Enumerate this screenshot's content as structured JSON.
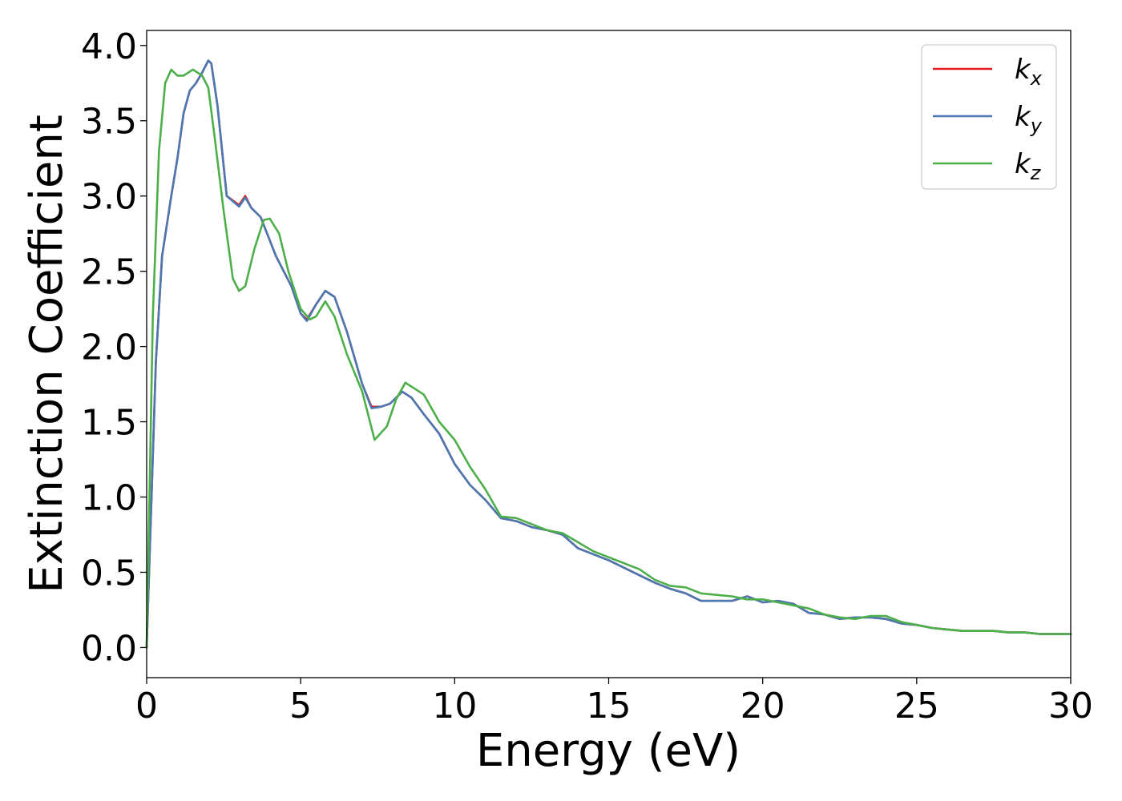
{
  "chart_data": {
    "type": "line",
    "xlabel": "Energy (eV)",
    "ylabel": "Extinction Coefficient",
    "xlim": [
      0,
      30
    ],
    "ylim": [
      -0.2,
      4.1
    ],
    "xticks": [
      0,
      5,
      10,
      15,
      20,
      25,
      30
    ],
    "xtick_labels": [
      "0",
      "5",
      "10",
      "15",
      "20",
      "25",
      "30"
    ],
    "yticks": [
      0.0,
      0.5,
      1.0,
      1.5,
      2.0,
      2.5,
      3.0,
      3.5,
      4.0
    ],
    "ytick_labels": [
      "0.0",
      "0.5",
      "1.0",
      "1.5",
      "2.0",
      "2.5",
      "3.0",
      "3.5",
      "4.0"
    ],
    "grid": false,
    "legend_position": "top-right",
    "series": [
      {
        "name": "k",
        "subscript": "x",
        "color": "#e41a1c",
        "x": [
          0,
          0.3,
          0.5,
          0.8,
          1.0,
          1.2,
          1.4,
          1.6,
          1.8,
          2.0,
          2.1,
          2.3,
          2.6,
          3.0,
          3.2,
          3.4,
          3.7,
          4.2,
          4.7,
          5.0,
          5.2,
          5.5,
          5.8,
          6.1,
          6.5,
          7.0,
          7.3,
          7.6,
          7.9,
          8.3,
          8.6,
          9.0,
          9.5,
          10.0,
          10.5,
          11.0,
          11.5,
          12.0,
          12.5,
          13.0,
          13.5,
          14.0,
          14.5,
          15.0,
          15.5,
          16.0,
          16.5,
          17.0,
          17.5,
          18.0,
          18.5,
          19.0,
          19.5,
          20.0,
          20.5,
          21.0,
          21.5,
          22.0,
          22.5,
          23.0,
          23.5,
          24.0,
          24.5,
          25.0,
          25.5,
          26.0,
          26.5,
          27.0,
          27.5,
          28.0,
          28.5,
          29.0,
          29.5,
          30.0
        ],
        "y": [
          0.0,
          1.9,
          2.6,
          3.0,
          3.25,
          3.55,
          3.7,
          3.75,
          3.82,
          3.9,
          3.88,
          3.6,
          3.0,
          2.94,
          3.0,
          2.92,
          2.86,
          2.6,
          2.4,
          2.22,
          2.18,
          2.28,
          2.37,
          2.33,
          2.1,
          1.75,
          1.6,
          1.6,
          1.62,
          1.7,
          1.66,
          1.55,
          1.42,
          1.22,
          1.08,
          0.98,
          0.86,
          0.84,
          0.8,
          0.78,
          0.75,
          0.66,
          0.62,
          0.58,
          0.53,
          0.48,
          0.43,
          0.39,
          0.36,
          0.31,
          0.31,
          0.31,
          0.34,
          0.3,
          0.31,
          0.29,
          0.23,
          0.22,
          0.19,
          0.2,
          0.2,
          0.19,
          0.16,
          0.15,
          0.13,
          0.12,
          0.11,
          0.11,
          0.11,
          0.1,
          0.1,
          0.09,
          0.09,
          0.09
        ]
      },
      {
        "name": "k",
        "subscript": "y",
        "color": "#4a78b2",
        "x": [
          0,
          0.3,
          0.5,
          0.8,
          1.0,
          1.2,
          1.4,
          1.6,
          1.8,
          2.0,
          2.1,
          2.3,
          2.6,
          3.0,
          3.2,
          3.4,
          3.7,
          4.2,
          4.7,
          5.0,
          5.2,
          5.5,
          5.8,
          6.1,
          6.5,
          7.0,
          7.3,
          7.6,
          7.9,
          8.3,
          8.6,
          9.0,
          9.5,
          10.0,
          10.5,
          11.0,
          11.5,
          12.0,
          12.5,
          13.0,
          13.5,
          14.0,
          14.5,
          15.0,
          15.5,
          16.0,
          16.5,
          17.0,
          17.5,
          18.0,
          18.5,
          19.0,
          19.5,
          20.0,
          20.5,
          21.0,
          21.5,
          22.0,
          22.5,
          23.0,
          23.5,
          24.0,
          24.5,
          25.0,
          25.5,
          26.0,
          26.5,
          27.0,
          27.5,
          28.0,
          28.5,
          29.0,
          29.5,
          30.0
        ],
        "y": [
          0.0,
          1.9,
          2.6,
          3.0,
          3.25,
          3.55,
          3.7,
          3.75,
          3.82,
          3.9,
          3.88,
          3.6,
          3.0,
          2.93,
          2.99,
          2.92,
          2.86,
          2.6,
          2.4,
          2.22,
          2.17,
          2.28,
          2.37,
          2.33,
          2.1,
          1.75,
          1.59,
          1.6,
          1.62,
          1.7,
          1.66,
          1.55,
          1.42,
          1.22,
          1.08,
          0.98,
          0.86,
          0.84,
          0.8,
          0.78,
          0.75,
          0.66,
          0.62,
          0.58,
          0.53,
          0.48,
          0.43,
          0.39,
          0.36,
          0.31,
          0.31,
          0.31,
          0.34,
          0.3,
          0.31,
          0.29,
          0.23,
          0.22,
          0.19,
          0.2,
          0.2,
          0.19,
          0.16,
          0.15,
          0.13,
          0.12,
          0.11,
          0.11,
          0.11,
          0.1,
          0.1,
          0.09,
          0.09,
          0.09
        ]
      },
      {
        "name": "k",
        "subscript": "z",
        "color": "#4daf4a",
        "x": [
          0,
          0.2,
          0.4,
          0.6,
          0.8,
          1.0,
          1.2,
          1.5,
          1.8,
          2.0,
          2.2,
          2.5,
          2.8,
          3.0,
          3.2,
          3.5,
          3.8,
          4.0,
          4.3,
          4.6,
          5.0,
          5.3,
          5.5,
          5.8,
          6.1,
          6.5,
          7.0,
          7.4,
          7.8,
          8.1,
          8.4,
          8.7,
          9.0,
          9.5,
          10.0,
          10.5,
          11.0,
          11.5,
          12.0,
          12.5,
          13.0,
          13.5,
          14.0,
          14.5,
          15.0,
          15.5,
          16.0,
          16.5,
          17.0,
          17.5,
          18.0,
          18.5,
          19.0,
          19.5,
          20.0,
          20.5,
          21.0,
          21.5,
          22.0,
          22.5,
          23.0,
          23.5,
          24.0,
          24.5,
          25.0,
          25.5,
          26.0,
          26.5,
          27.0,
          27.5,
          28.0,
          28.5,
          29.0,
          29.5,
          30.0
        ],
        "y": [
          0.0,
          2.2,
          3.3,
          3.75,
          3.84,
          3.8,
          3.8,
          3.84,
          3.8,
          3.72,
          3.4,
          2.9,
          2.45,
          2.37,
          2.4,
          2.65,
          2.84,
          2.85,
          2.75,
          2.5,
          2.25,
          2.18,
          2.2,
          2.3,
          2.2,
          1.95,
          1.7,
          1.38,
          1.47,
          1.65,
          1.76,
          1.72,
          1.68,
          1.5,
          1.38,
          1.2,
          1.05,
          0.87,
          0.86,
          0.82,
          0.78,
          0.76,
          0.7,
          0.64,
          0.6,
          0.56,
          0.52,
          0.45,
          0.41,
          0.4,
          0.36,
          0.35,
          0.34,
          0.32,
          0.32,
          0.3,
          0.28,
          0.26,
          0.22,
          0.2,
          0.19,
          0.21,
          0.21,
          0.17,
          0.15,
          0.13,
          0.12,
          0.11,
          0.11,
          0.11,
          0.1,
          0.1,
          0.09,
          0.09,
          0.09
        ]
      }
    ]
  }
}
